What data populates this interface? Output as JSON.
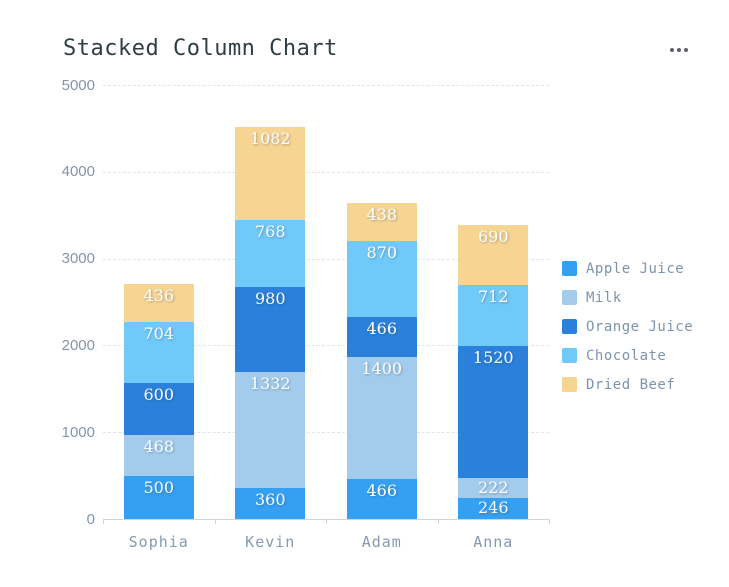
{
  "header": {
    "title": "Stacked Column Chart",
    "menu_icon": "ellipsis-horizontal"
  },
  "colors": {
    "title_text": "#2e3e42",
    "axis_text": "#8195ae",
    "gridline": "#dfe4ee",
    "axis_line": "#ccd5e2",
    "segment_label_text": "#ffffff"
  },
  "chart_data": {
    "type": "bar",
    "stacked": true,
    "title": "Stacked Column Chart",
    "categories": [
      "Sophia",
      "Kevin",
      "Adam",
      "Anna"
    ],
    "series": [
      {
        "name": "Apple Juice",
        "color": "#35a0f2",
        "values": [
          500,
          360,
          466,
          246
        ]
      },
      {
        "name": "Milk",
        "color": "#a3cbec",
        "values": [
          468,
          1332,
          1400,
          222
        ]
      },
      {
        "name": "Orange Juice",
        "color": "#2a80da",
        "values": [
          600,
          980,
          466,
          1520
        ]
      },
      {
        "name": "Chocolate",
        "color": "#70c9f8",
        "values": [
          704,
          768,
          870,
          712
        ]
      },
      {
        "name": "Dried Beef",
        "color": "#f6d492",
        "values": [
          436,
          1082,
          438,
          690
        ]
      }
    ],
    "totals": [
      2708,
      4522,
      3640,
      3390
    ],
    "ylim": [
      0,
      5000
    ],
    "y_ticks": [
      5000,
      4000,
      3000,
      2000,
      1000,
      0
    ],
    "grid": "horizontal-dashed",
    "legend_position": "right",
    "segment_labels_visible": true
  }
}
